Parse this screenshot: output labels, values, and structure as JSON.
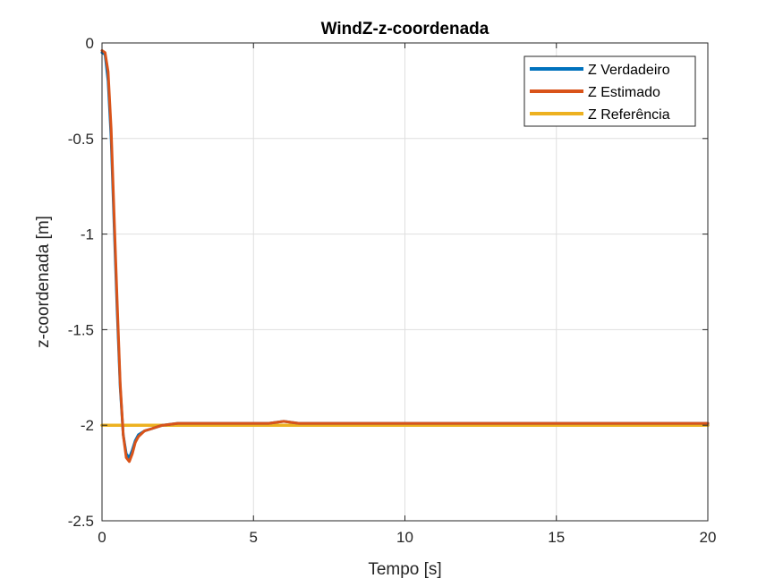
{
  "chart_data": {
    "type": "line",
    "title": "WindZ-z-coordenada",
    "xlabel": "Tempo [s]",
    "ylabel": "z-coordenada [m]",
    "xlim": [
      0,
      20
    ],
    "ylim": [
      -2.5,
      0
    ],
    "xticks": [
      0,
      5,
      10,
      15,
      20
    ],
    "xtick_labels": [
      "0",
      "5",
      "10",
      "15",
      "20"
    ],
    "yticks": [
      0,
      -0.5,
      -1,
      -1.5,
      -2,
      -2.5
    ],
    "ytick_labels": [
      "0",
      "-0.5",
      "-1",
      "-1.5",
      "-2",
      "-2.5"
    ],
    "grid": true,
    "legend_location": "top-right",
    "series": [
      {
        "name": "Z Verdadeiro",
        "color": "#0072BD",
        "x": [
          0,
          0.1,
          0.2,
          0.3,
          0.4,
          0.5,
          0.6,
          0.7,
          0.8,
          0.9,
          1.0,
          1.1,
          1.2,
          1.4,
          1.6,
          1.8,
          2.0,
          2.5,
          3,
          4,
          5,
          5.5,
          6,
          6.5,
          7,
          8,
          10,
          12,
          14,
          16,
          18,
          20
        ],
        "y": [
          -0.05,
          -0.06,
          -0.2,
          -0.5,
          -0.95,
          -1.4,
          -1.8,
          -2.05,
          -2.15,
          -2.17,
          -2.13,
          -2.08,
          -2.05,
          -2.03,
          -2.02,
          -2.01,
          -2.0,
          -1.99,
          -1.99,
          -1.99,
          -1.99,
          -1.99,
          -1.98,
          -1.99,
          -1.99,
          -1.99,
          -1.99,
          -1.99,
          -1.99,
          -1.99,
          -1.99,
          -1.99
        ]
      },
      {
        "name": "Z Estimado",
        "color": "#D95319",
        "x": [
          0,
          0.1,
          0.2,
          0.3,
          0.4,
          0.5,
          0.6,
          0.7,
          0.8,
          0.9,
          1.0,
          1.1,
          1.2,
          1.4,
          1.6,
          1.8,
          2.0,
          2.5,
          3,
          4,
          5,
          5.5,
          6,
          6.5,
          7,
          8,
          10,
          12,
          14,
          16,
          18,
          20
        ],
        "y": [
          -0.04,
          -0.05,
          -0.15,
          -0.45,
          -0.9,
          -1.35,
          -1.78,
          -2.05,
          -2.17,
          -2.19,
          -2.15,
          -2.09,
          -2.06,
          -2.03,
          -2.02,
          -2.01,
          -2.0,
          -1.99,
          -1.99,
          -1.99,
          -1.99,
          -1.99,
          -1.98,
          -1.99,
          -1.99,
          -1.99,
          -1.99,
          -1.99,
          -1.99,
          -1.99,
          -1.99,
          -1.99
        ]
      },
      {
        "name": "Z Referência",
        "color": "#EDB120",
        "x": [
          0,
          20
        ],
        "y": [
          -2,
          -2
        ]
      }
    ]
  }
}
